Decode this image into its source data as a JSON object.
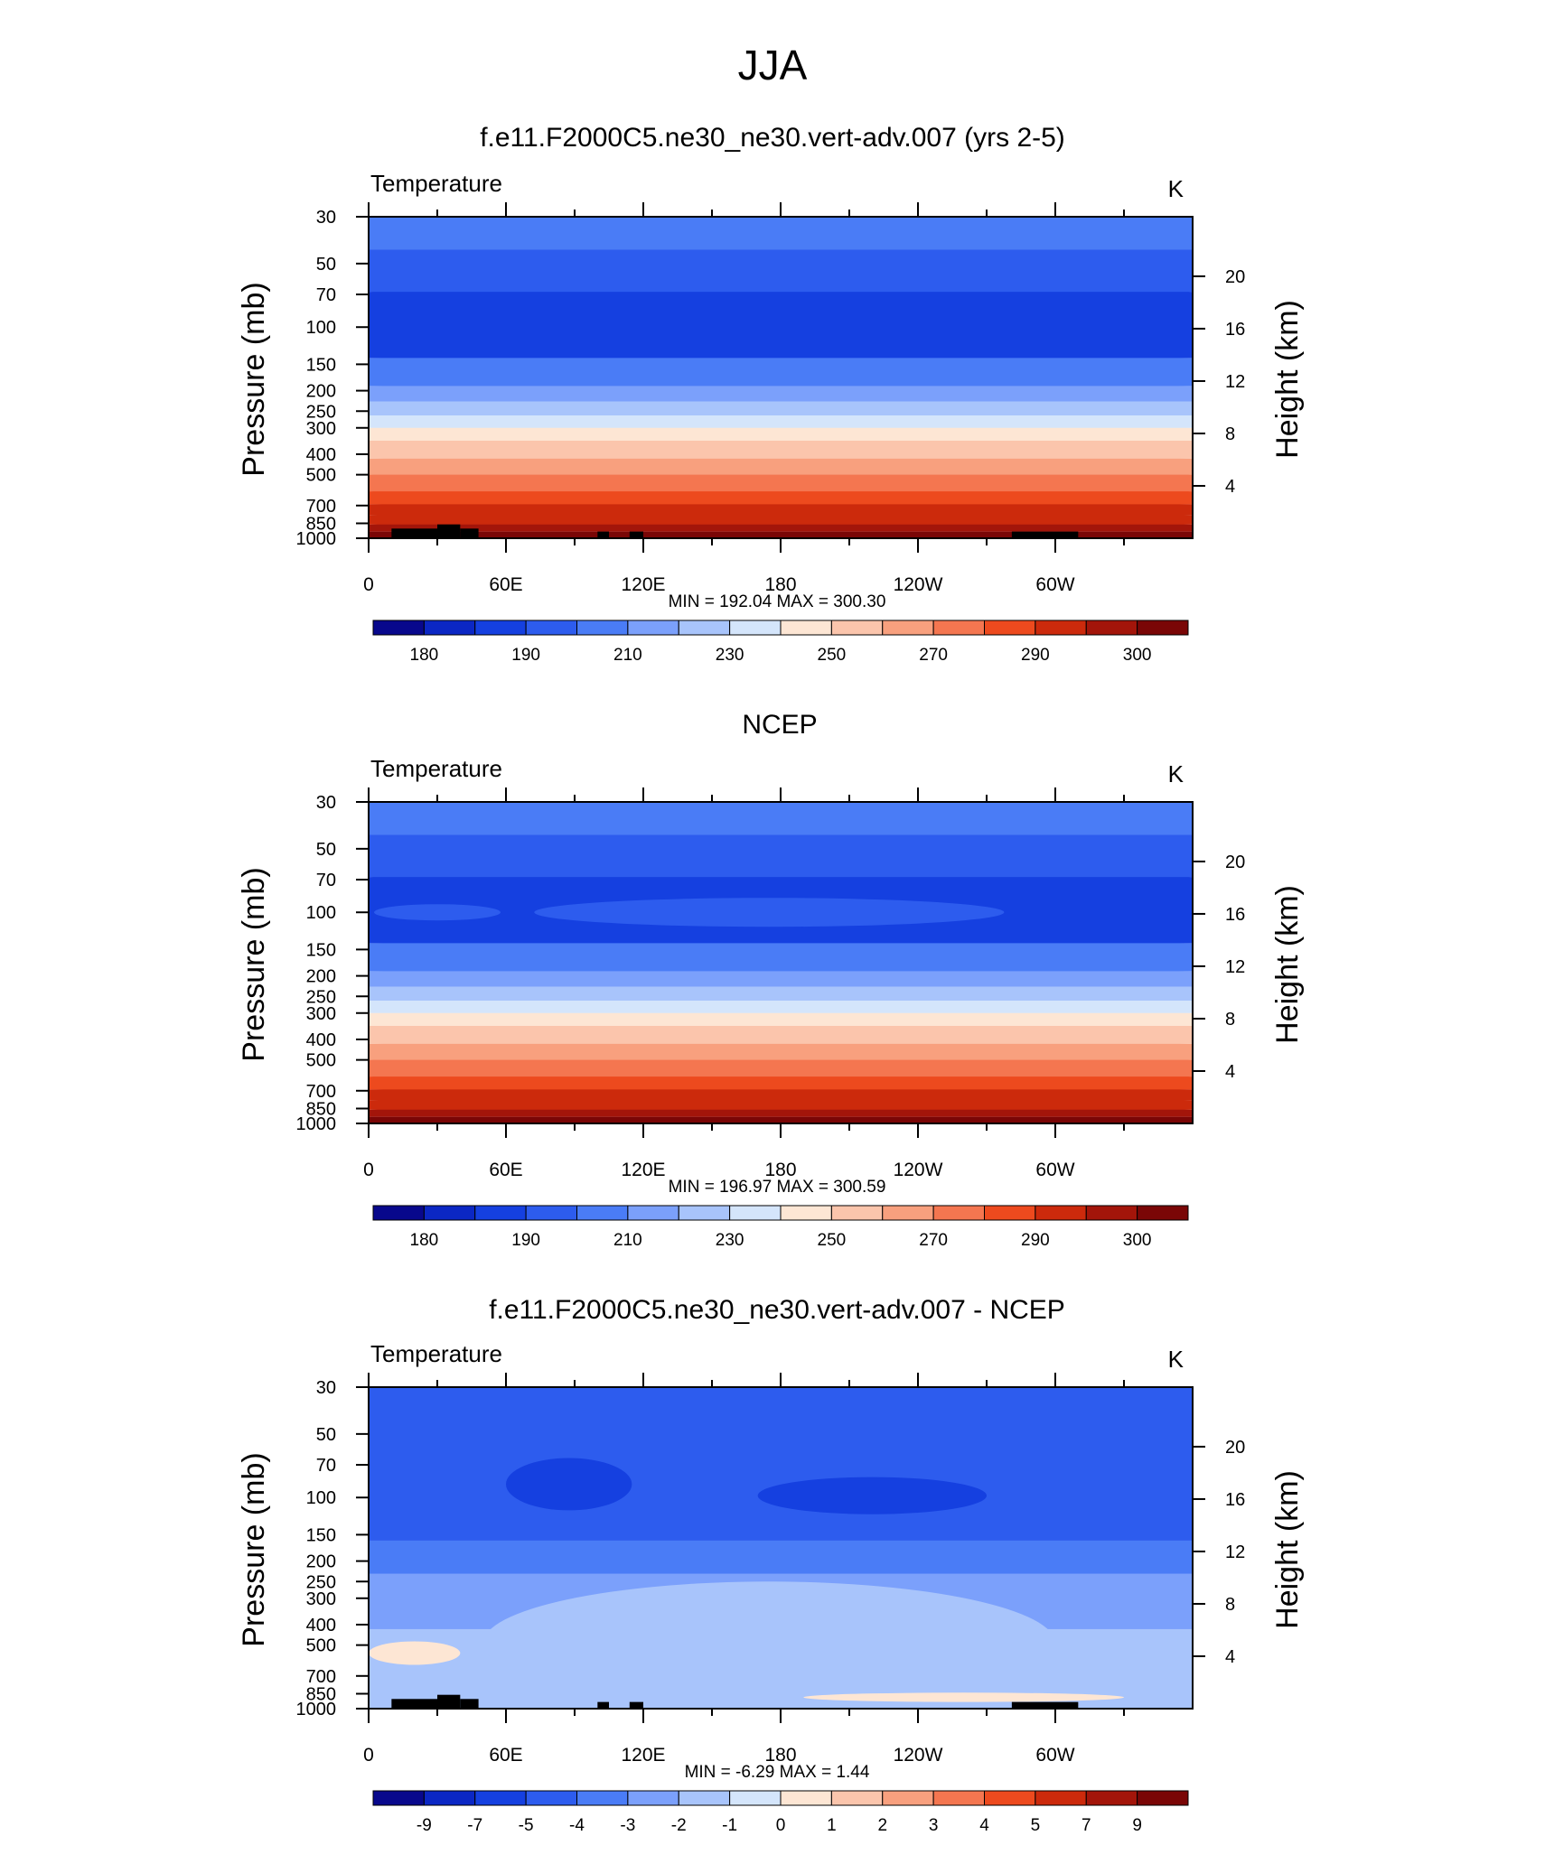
{
  "figure": {
    "main_title": "JJA"
  },
  "palettes": {
    "abs": [
      "#08088c",
      "#0b27c4",
      "#1540e0",
      "#2d5cee",
      "#4a7cf6",
      "#7ba0fb",
      "#a8c4fb",
      "#d4e5fb",
      "#fde6d4",
      "#fbc5ac",
      "#f8a07e",
      "#f47650",
      "#ed4a1e",
      "#cc2a0c",
      "#a3150a",
      "#7a0606"
    ],
    "diff": [
      "#08088c",
      "#0b27c4",
      "#1540e0",
      "#2d5cee",
      "#4a7cf6",
      "#7ba0fb",
      "#a8c4fb",
      "#d4e5fb",
      "#fde6d4",
      "#fbc5ac",
      "#f8a07e",
      "#f47650",
      "#ed4a1e",
      "#cc2a0c",
      "#a3150a",
      "#7a0606"
    ]
  },
  "chart_data": [
    {
      "type": "heatmap",
      "title": "f.e11.F2000C5.ne30_ne30.vert-adv.007 (yrs 2-5)",
      "left_label": "Temperature",
      "units": "K",
      "ylabel": "Pressure (mb)",
      "y2label": "Height (km)",
      "stats": "MIN = 192.04  MAX = 300.30",
      "x_ticks": [
        "0",
        "60E",
        "120E",
        "180",
        "120W",
        "60W"
      ],
      "x_range": [
        0,
        360
      ],
      "pressure_ticks": [
        "30",
        "50",
        "70",
        "100",
        "150",
        "200",
        "250",
        "300",
        "400",
        "500",
        "700",
        "850",
        "1000"
      ],
      "ylim_mb": [
        1000,
        30
      ],
      "height_ticks_km": [
        "4",
        "8",
        "12",
        "16",
        "20"
      ],
      "colorbar_labels": [
        "180",
        "190",
        "210",
        "230",
        "250",
        "270",
        "290",
        "300"
      ],
      "levels_bottom_to_top": [
        300.3,
        295,
        290,
        285,
        280,
        275,
        270,
        260,
        250,
        240,
        230,
        220,
        210,
        200,
        192.04
      ],
      "topography": [
        [
          10,
          30,
          900
        ],
        [
          30,
          40,
          860
        ],
        [
          40,
          48,
          900
        ],
        [
          100,
          105,
          930
        ],
        [
          114,
          120,
          930
        ],
        [
          281,
          310,
          930
        ]
      ]
    },
    {
      "type": "heatmap",
      "title": "NCEP",
      "left_label": "Temperature",
      "units": "K",
      "ylabel": "Pressure (mb)",
      "y2label": "Height (km)",
      "stats": "MIN = 196.97  MAX = 300.59",
      "x_ticks": [
        "0",
        "60E",
        "120E",
        "180",
        "120W",
        "60W"
      ],
      "x_range": [
        0,
        360
      ],
      "pressure_ticks": [
        "30",
        "50",
        "70",
        "100",
        "150",
        "200",
        "250",
        "300",
        "400",
        "500",
        "700",
        "850",
        "1000"
      ],
      "ylim_mb": [
        1000,
        30
      ],
      "height_ticks_km": [
        "4",
        "8",
        "12",
        "16",
        "20"
      ],
      "colorbar_labels": [
        "180",
        "190",
        "210",
        "230",
        "250",
        "270",
        "290",
        "300"
      ],
      "levels_bottom_to_top": [
        300.59,
        295,
        290,
        285,
        280,
        275,
        270,
        260,
        250,
        240,
        230,
        220,
        210,
        200,
        196.97
      ],
      "topography": []
    },
    {
      "type": "heatmap",
      "title": "f.e11.F2000C5.ne30_ne30.vert-adv.007 - NCEP",
      "left_label": "Temperature",
      "units": "K",
      "ylabel": "Pressure (mb)",
      "y2label": "Height (km)",
      "stats": "MIN =  -6.29  MAX =   1.44",
      "x_ticks": [
        "0",
        "60E",
        "120E",
        "180",
        "120W",
        "60W"
      ],
      "x_range": [
        0,
        360
      ],
      "pressure_ticks": [
        "30",
        "50",
        "70",
        "100",
        "150",
        "200",
        "250",
        "300",
        "400",
        "500",
        "700",
        "850",
        "1000"
      ],
      "ylim_mb": [
        1000,
        30
      ],
      "height_ticks_km": [
        "4",
        "8",
        "12",
        "16",
        "20"
      ],
      "colorbar_labels": [
        "-9",
        "-7",
        "-5",
        "-4",
        "-3",
        "-2",
        "-1",
        "0",
        "1",
        "2",
        "3",
        "4",
        "5",
        "7",
        "9"
      ],
      "difference_regions": [
        {
          "value": -4.5,
          "lon": [
            0,
            360
          ],
          "p_mb": [
            30,
            160
          ]
        },
        {
          "value": -5.5,
          "lon": [
            60,
            115
          ],
          "p_mb": [
            65,
            115
          ]
        },
        {
          "value": -5.5,
          "lon": [
            170,
            270
          ],
          "p_mb": [
            80,
            120
          ]
        },
        {
          "value": -3.5,
          "lon": [
            0,
            360
          ],
          "p_mb": [
            160,
            230
          ]
        },
        {
          "value": -2.5,
          "lon": [
            0,
            360
          ],
          "p_mb": [
            230,
            420
          ]
        },
        {
          "value": -1.5,
          "lon": [
            50,
            300
          ],
          "p_mb": [
            250,
            960
          ]
        },
        {
          "value": 0.5,
          "lon": [
            0,
            40
          ],
          "p_mb": [
            480,
            620
          ]
        },
        {
          "value": 0.5,
          "lon": [
            190,
            330
          ],
          "p_mb": [
            840,
            930
          ]
        }
      ],
      "topography": [
        [
          10,
          30,
          900
        ],
        [
          30,
          40,
          860
        ],
        [
          40,
          48,
          900
        ],
        [
          100,
          105,
          930
        ],
        [
          114,
          120,
          930
        ],
        [
          281,
          310,
          930
        ]
      ]
    }
  ]
}
